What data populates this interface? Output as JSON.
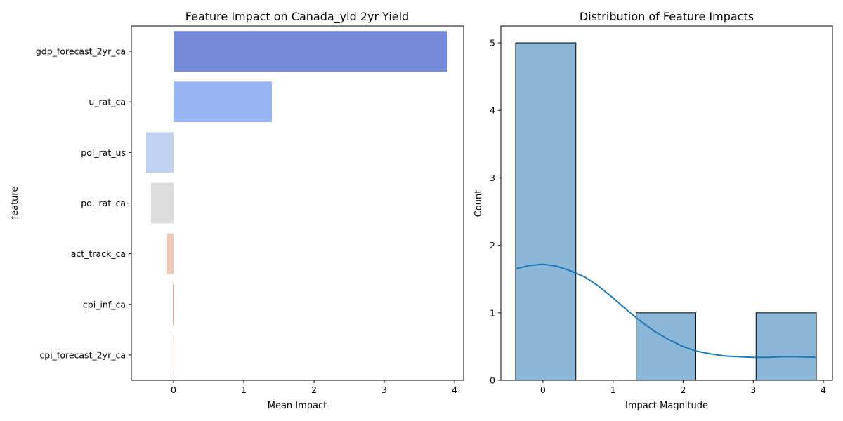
{
  "chart_data": [
    {
      "type": "bar",
      "orientation": "horizontal",
      "title": "Feature Impact on Canada_yld 2yr Yield",
      "xlabel": "Mean Impact",
      "ylabel": "feature",
      "categories": [
        "gdp_forecast_2yr_ca",
        "u_rat_ca",
        "pol_rat_us",
        "pol_rat_ca",
        "act_track_ca",
        "cpi_inf_ca",
        "cpi_forecast_2yr_ca"
      ],
      "values": [
        3.9,
        1.4,
        -0.39,
        -0.32,
        -0.09,
        -0.01,
        0.0
      ],
      "colors": [
        "#7489da",
        "#9ab3f2",
        "#c2d3f2",
        "#dcdcdc",
        "#f0c9b3",
        "#e6a488",
        "#d98a72"
      ],
      "xlim": [
        -0.6,
        4.13
      ],
      "xticks": [
        "0",
        "1",
        "2",
        "3",
        "4"
      ],
      "xtick_values": [
        0,
        1,
        2,
        3,
        4
      ],
      "grid": false
    },
    {
      "type": "histogram",
      "title": "Distribution of Feature Impacts",
      "xlabel": "Impact Magnitude",
      "ylabel": "Count",
      "bins": [
        {
          "start": -0.39,
          "end": 0.47,
          "count": 5
        },
        {
          "start": 0.47,
          "end": 1.33,
          "count": 0
        },
        {
          "start": 1.33,
          "end": 2.18,
          "count": 1
        },
        {
          "start": 2.18,
          "end": 3.04,
          "count": 0
        },
        {
          "start": 3.04,
          "end": 3.9,
          "count": 1
        }
      ],
      "kde": {
        "x": [
          -0.39,
          -0.2,
          0.0,
          0.2,
          0.4,
          0.6,
          0.8,
          1.0,
          1.2,
          1.4,
          1.6,
          1.8,
          2.0,
          2.2,
          2.4,
          2.6,
          2.8,
          3.0,
          3.2,
          3.4,
          3.6,
          3.9
        ],
        "y": [
          1.65,
          1.7,
          1.72,
          1.69,
          1.62,
          1.53,
          1.39,
          1.22,
          1.04,
          0.87,
          0.72,
          0.6,
          0.5,
          0.43,
          0.39,
          0.36,
          0.35,
          0.34,
          0.34,
          0.35,
          0.35,
          0.34
        ]
      },
      "bar_color": "#8bb8d8",
      "line_color": "#1f77b4",
      "xlim": [
        -0.6,
        4.13
      ],
      "ylim": [
        0,
        5.25
      ],
      "xticks": [
        "0",
        "1",
        "2",
        "3",
        "4"
      ],
      "xtick_values": [
        0,
        1,
        2,
        3,
        4
      ],
      "yticks": [
        "0",
        "1",
        "2",
        "3",
        "4",
        "5"
      ],
      "ytick_values": [
        0,
        1,
        2,
        3,
        4,
        5
      ],
      "grid": false
    }
  ]
}
